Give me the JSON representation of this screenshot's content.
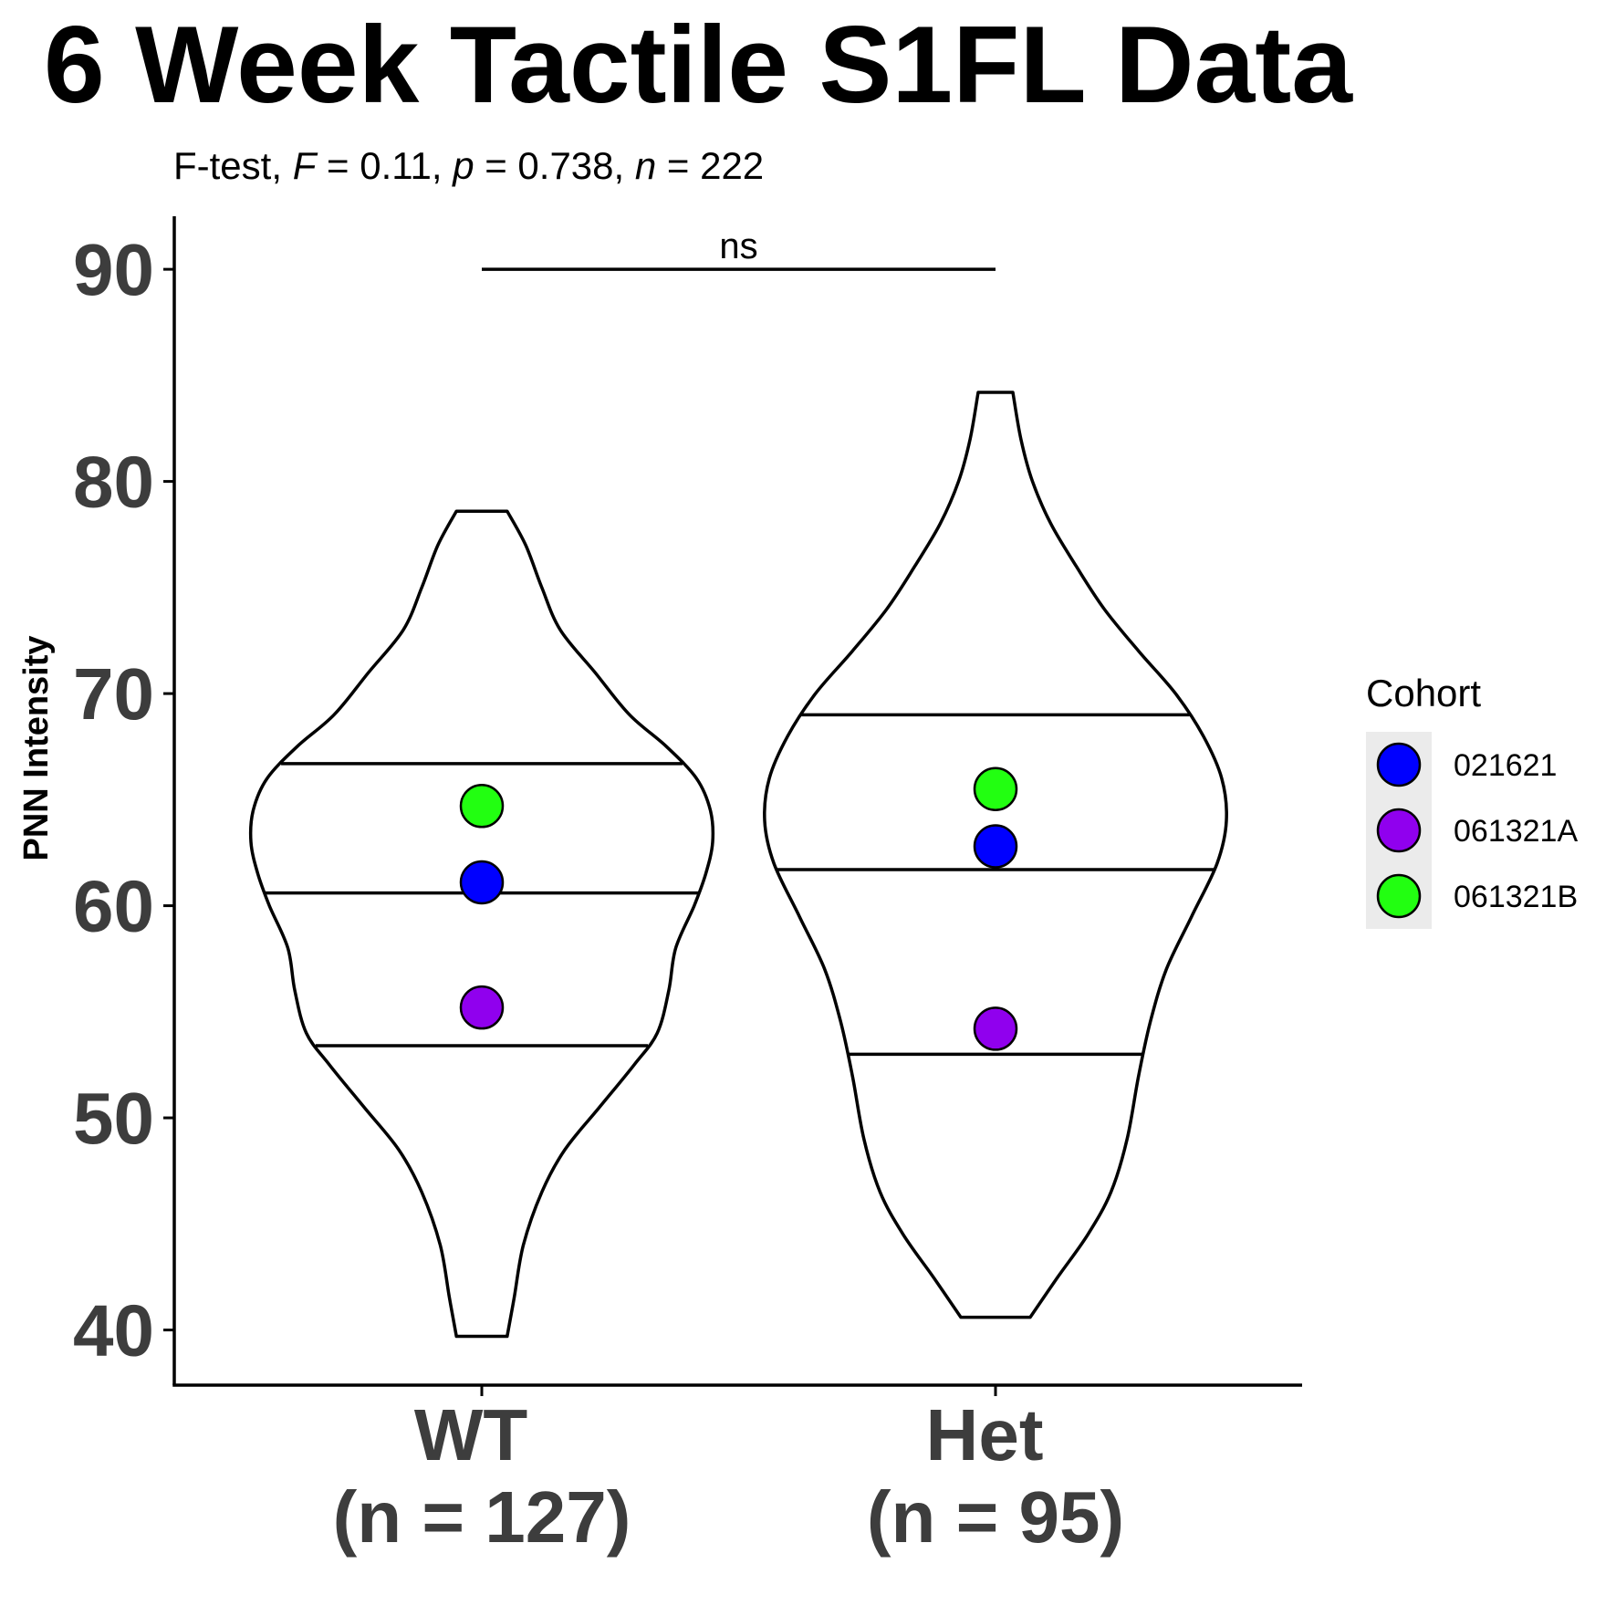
{
  "chart_data": {
    "type": "violin",
    "title": "6 Week Tactile S1FL Data",
    "subtitle": {
      "test": "F-test, ",
      "F_sym": "F",
      "F_val": " = 0.11, ",
      "p_sym": "p",
      "p_val": " = 0.738, ",
      "n_sym": "n",
      "n_val": " = 222"
    },
    "ylabel": "PNN Intensity",
    "ylim": [
      37.4,
      92.5
    ],
    "yticks": [
      40,
      50,
      60,
      70,
      80,
      90
    ],
    "ytick_labels": [
      "40",
      "50",
      "60",
      "70",
      "80",
      "90"
    ],
    "groups": [
      {
        "name": "WT",
        "n_label": "(n = 127)",
        "min": 39.7,
        "max": 78.6,
        "quantiles": [
          53.4,
          60.6,
          66.7
        ],
        "cohort_means": [
          {
            "cohort": "021621",
            "value": 61.1
          },
          {
            "cohort": "061321A",
            "value": 55.2
          },
          {
            "cohort": "061321B",
            "value": 64.7
          }
        ],
        "density_halfwidth": [
          [
            39.7,
            0.11
          ],
          [
            41.5,
            0.14
          ],
          [
            44.0,
            0.18
          ],
          [
            46.5,
            0.26
          ],
          [
            48.5,
            0.36
          ],
          [
            50.5,
            0.51
          ],
          [
            52.5,
            0.66
          ],
          [
            54.0,
            0.76
          ],
          [
            56.0,
            0.81
          ],
          [
            58.0,
            0.84
          ],
          [
            60.0,
            0.92
          ],
          [
            61.5,
            0.97
          ],
          [
            63.0,
            1.0
          ],
          [
            64.5,
            0.99
          ],
          [
            66.0,
            0.93
          ],
          [
            67.5,
            0.8
          ],
          [
            69.0,
            0.64
          ],
          [
            71.0,
            0.49
          ],
          [
            73.0,
            0.34
          ],
          [
            75.0,
            0.26
          ],
          [
            77.0,
            0.19
          ],
          [
            78.6,
            0.11
          ]
        ]
      },
      {
        "name": "Het",
        "n_label": "(n = 95)",
        "min": 40.6,
        "max": 84.2,
        "quantiles": [
          53.0,
          61.7,
          69.0
        ],
        "cohort_means": [
          {
            "cohort": "021621",
            "value": 62.8
          },
          {
            "cohort": "061321A",
            "value": 54.2
          },
          {
            "cohort": "061321B",
            "value": 65.5
          }
        ],
        "density_halfwidth": [
          [
            40.6,
            0.15
          ],
          [
            42.5,
            0.27
          ],
          [
            44.5,
            0.4
          ],
          [
            46.5,
            0.5
          ],
          [
            49.0,
            0.57
          ],
          [
            52.0,
            0.62
          ],
          [
            54.5,
            0.67
          ],
          [
            57.0,
            0.74
          ],
          [
            59.5,
            0.85
          ],
          [
            62.0,
            0.96
          ],
          [
            64.0,
            1.0
          ],
          [
            66.0,
            0.98
          ],
          [
            68.0,
            0.9
          ],
          [
            70.0,
            0.78
          ],
          [
            72.0,
            0.62
          ],
          [
            74.0,
            0.47
          ],
          [
            76.0,
            0.35
          ],
          [
            78.0,
            0.24
          ],
          [
            80.0,
            0.16
          ],
          [
            82.0,
            0.11
          ],
          [
            84.2,
            0.075
          ]
        ]
      }
    ],
    "significance": {
      "label": "ns",
      "y": 90
    },
    "legend": {
      "title": "Cohort",
      "position": "right",
      "entries": [
        {
          "name": "021621",
          "color": "#0000ff"
        },
        {
          "name": "061321A",
          "color": "#9000ee"
        },
        {
          "name": "061321B",
          "color": "#22ff11"
        }
      ]
    },
    "grid": false
  }
}
